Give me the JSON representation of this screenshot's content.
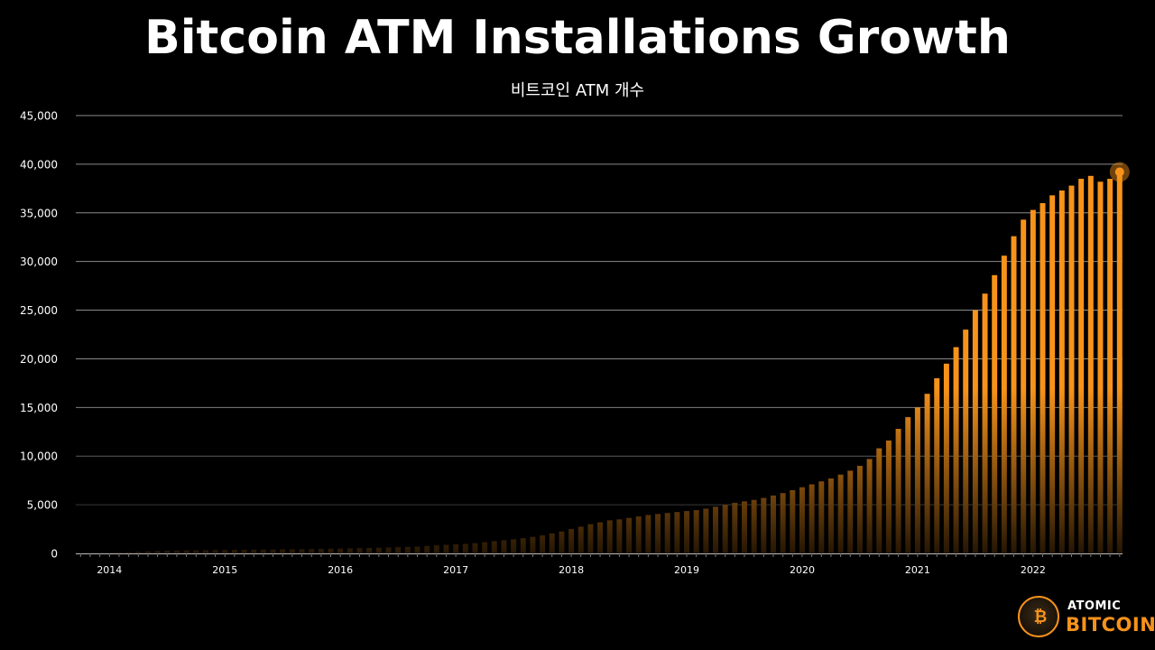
{
  "chart_data": {
    "type": "bar",
    "title": "Bitcoin ATM Installations Growth",
    "subtitle": "비트코인 ATM 개수",
    "ylim": [
      0,
      45000
    ],
    "y_ticks": [
      "0",
      "5,000",
      "10,000",
      "15,000",
      "20,000",
      "25,000",
      "30,000",
      "35,000",
      "40,000",
      "45,000"
    ],
    "y_tick_values": [
      0,
      5000,
      10000,
      15000,
      20000,
      25000,
      30000,
      35000,
      40000,
      45000
    ],
    "x_ticks": [
      "2014",
      "2015",
      "2016",
      "2017",
      "2018",
      "2019",
      "2020",
      "2021",
      "2022"
    ],
    "x_tick_index": [
      3,
      15,
      27,
      39,
      51,
      63,
      75,
      87,
      99
    ],
    "grid": "horizontal",
    "bar_color": "#f7931a",
    "values": [
      20,
      30,
      40,
      60,
      90,
      130,
      170,
      210,
      250,
      280,
      300,
      310,
      320,
      330,
      340,
      350,
      360,
      370,
      380,
      390,
      400,
      410,
      420,
      430,
      440,
      460,
      480,
      500,
      520,
      540,
      560,
      580,
      610,
      640,
      670,
      700,
      760,
      820,
      880,
      930,
      980,
      1050,
      1150,
      1260,
      1350,
      1450,
      1560,
      1700,
      1850,
      2050,
      2250,
      2500,
      2750,
      3000,
      3200,
      3400,
      3500,
      3650,
      3800,
      3950,
      4050,
      4150,
      4250,
      4350,
      4450,
      4600,
      4800,
      5000,
      5200,
      5350,
      5500,
      5700,
      5950,
      6200,
      6500,
      6800,
      7100,
      7400,
      7700,
      8100,
      8500,
      9000,
      9700,
      10800,
      11600,
      12800,
      14000,
      15000,
      16400,
      18000,
      19500,
      21200,
      23000,
      25000,
      26700,
      28600,
      30600,
      32600,
      34300,
      35300,
      36000,
      36800,
      37300,
      37800,
      38500,
      38800,
      38200,
      38500,
      39200
    ]
  },
  "logo": {
    "top_text": "ATOMIC",
    "bottom_text": "BITCOIN",
    "symbol": "₿"
  }
}
